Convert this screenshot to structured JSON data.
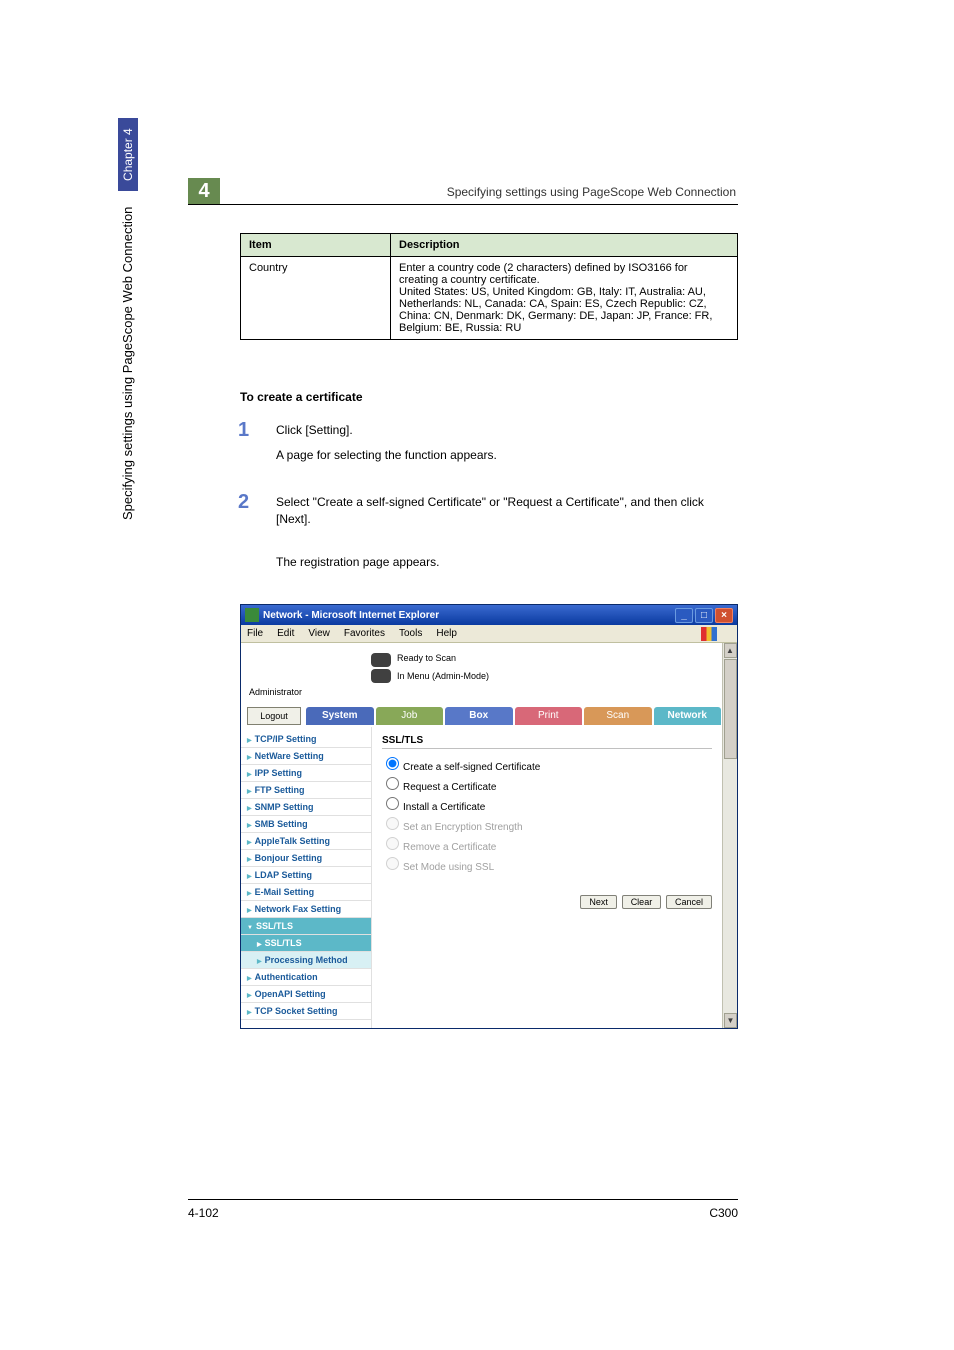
{
  "page": {
    "chapterNum": "4",
    "headerText": "Specifying settings using PageScope Web Connection",
    "verticalText": "Specifying settings using PageScope Web Connection",
    "chapterLabel": "Chapter 4",
    "footerLeft": "4-102",
    "footerRight": "C300"
  },
  "table": {
    "headItem": "Item",
    "headDesc": "Description",
    "row1Item": "Country",
    "row1Desc": "Enter a country code (2 characters) defined by ISO3166 for creating a country certificate.\nUnited States: US, United Kingdom: GB, Italy: IT, Australia: AU, Netherlands: NL, Canada: CA, Spain: ES, Czech Republic: CZ, China: CN, Denmark: DK, Germany: DE, Japan: JP, France: FR, Belgium: BE, Russia: RU"
  },
  "sectionTitle": "To create a certificate",
  "step1": {
    "num": "1",
    "text": "Click [Setting].",
    "sub": "A page for selecting the function appears."
  },
  "step2": {
    "num": "2",
    "text": "Select \"Create a self-signed Certificate\" or \"Request a Certificate\", and then click [Next].",
    "sub": "The registration page appears."
  },
  "browser": {
    "title": "Network - Microsoft Internet Explorer",
    "menus": [
      "File",
      "Edit",
      "View",
      "Favorites",
      "Tools",
      "Help"
    ],
    "status1": "Ready to Scan",
    "status2": "In Menu (Admin-Mode)",
    "adminLabel": "Administrator",
    "logout": "Logout",
    "tabs": {
      "system": "System",
      "job": "Job",
      "box": "Box",
      "print": "Print",
      "scan": "Scan",
      "network": "Network"
    },
    "sidebar": [
      "TCP/IP Setting",
      "NetWare Setting",
      "IPP Setting",
      "FTP Setting",
      "SNMP Setting",
      "SMB Setting",
      "AppleTalk Setting",
      "Bonjour Setting",
      "LDAP Setting",
      "E-Mail Setting",
      "Network Fax Setting"
    ],
    "sidebarExpanded": "SSL/TLS",
    "sidebarSubs": [
      "SSL/TLS",
      "Processing Method"
    ],
    "sidebarAfter": [
      "Authentication",
      "OpenAPI Setting",
      "TCP Socket Setting"
    ],
    "panelTitle": "SSL/TLS",
    "radios": [
      {
        "label": "Create a self-signed Certificate",
        "checked": true,
        "disabled": false
      },
      {
        "label": "Request a Certificate",
        "checked": false,
        "disabled": false
      },
      {
        "label": "Install a Certificate",
        "checked": false,
        "disabled": false
      },
      {
        "label": "Set an Encryption Strength",
        "checked": false,
        "disabled": true
      },
      {
        "label": "Remove a Certificate",
        "checked": false,
        "disabled": true
      },
      {
        "label": "Set Mode using SSL",
        "checked": false,
        "disabled": true
      }
    ],
    "buttons": [
      "Next",
      "Clear",
      "Cancel"
    ]
  }
}
